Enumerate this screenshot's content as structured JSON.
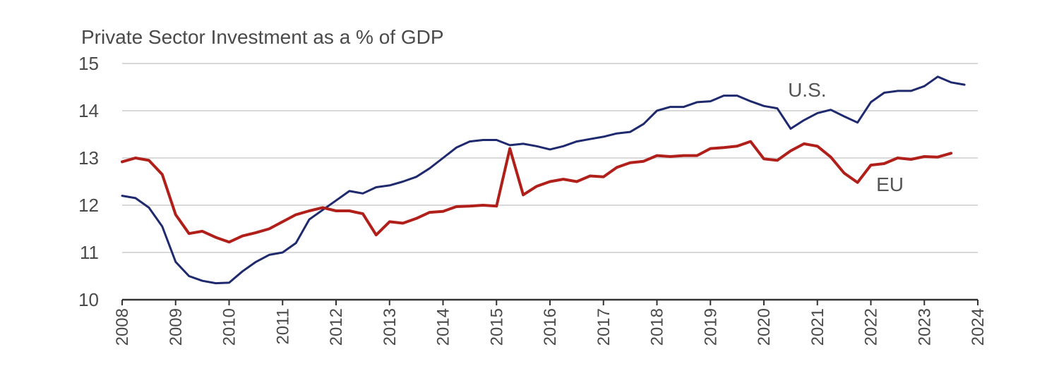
{
  "chart_data": {
    "type": "line",
    "title": "Private Sector Investment as a % of GDP",
    "xlabel": "",
    "ylabel": "",
    "xlim": [
      2008,
      2024
    ],
    "ylim": [
      10,
      15
    ],
    "yticks": [
      "10",
      "11",
      "12",
      "13",
      "14",
      "15"
    ],
    "xticks": [
      "2008",
      "2009",
      "2010",
      "2011",
      "2012",
      "2013",
      "2014",
      "2015",
      "2016",
      "2017",
      "2018",
      "2019",
      "2020",
      "2021",
      "2022",
      "2023",
      "2024"
    ],
    "grid": true,
    "series": [
      {
        "name": "U.S.",
        "color": "#1f2a6e",
        "points": [
          [
            2008.0,
            12.2
          ],
          [
            2008.25,
            12.15
          ],
          [
            2008.5,
            11.95
          ],
          [
            2008.75,
            11.55
          ],
          [
            2009.0,
            10.8
          ],
          [
            2009.25,
            10.5
          ],
          [
            2009.5,
            10.4
          ],
          [
            2009.75,
            10.35
          ],
          [
            2010.0,
            10.36
          ],
          [
            2010.25,
            10.6
          ],
          [
            2010.5,
            10.8
          ],
          [
            2010.75,
            10.95
          ],
          [
            2011.0,
            11.0
          ],
          [
            2011.25,
            11.2
          ],
          [
            2011.5,
            11.7
          ],
          [
            2011.75,
            11.9
          ],
          [
            2012.0,
            12.1
          ],
          [
            2012.25,
            12.3
          ],
          [
            2012.5,
            12.25
          ],
          [
            2012.75,
            12.38
          ],
          [
            2013.0,
            12.42
          ],
          [
            2013.25,
            12.5
          ],
          [
            2013.5,
            12.6
          ],
          [
            2013.75,
            12.78
          ],
          [
            2014.0,
            13.0
          ],
          [
            2014.25,
            13.22
          ],
          [
            2014.5,
            13.35
          ],
          [
            2014.75,
            13.38
          ],
          [
            2015.0,
            13.38
          ],
          [
            2015.25,
            13.27
          ],
          [
            2015.5,
            13.3
          ],
          [
            2015.75,
            13.25
          ],
          [
            2016.0,
            13.18
          ],
          [
            2016.25,
            13.25
          ],
          [
            2016.5,
            13.35
          ],
          [
            2016.75,
            13.4
          ],
          [
            2017.0,
            13.45
          ],
          [
            2017.25,
            13.52
          ],
          [
            2017.5,
            13.55
          ],
          [
            2017.75,
            13.72
          ],
          [
            2018.0,
            14.0
          ],
          [
            2018.25,
            14.08
          ],
          [
            2018.5,
            14.08
          ],
          [
            2018.75,
            14.18
          ],
          [
            2019.0,
            14.2
          ],
          [
            2019.25,
            14.32
          ],
          [
            2019.5,
            14.32
          ],
          [
            2019.75,
            14.2
          ],
          [
            2020.0,
            14.1
          ],
          [
            2020.25,
            14.05
          ],
          [
            2020.5,
            13.62
          ],
          [
            2020.75,
            13.8
          ],
          [
            2021.0,
            13.95
          ],
          [
            2021.25,
            14.02
          ],
          [
            2021.5,
            13.88
          ],
          [
            2021.75,
            13.75
          ],
          [
            2022.0,
            14.18
          ],
          [
            2022.25,
            14.38
          ],
          [
            2022.5,
            14.42
          ],
          [
            2022.75,
            14.42
          ],
          [
            2023.0,
            14.52
          ],
          [
            2023.25,
            14.72
          ],
          [
            2023.5,
            14.6
          ],
          [
            2023.75,
            14.55
          ]
        ]
      },
      {
        "name": "EU",
        "color": "#b01f1a",
        "points": [
          [
            2008.0,
            12.92
          ],
          [
            2008.25,
            13.0
          ],
          [
            2008.5,
            12.95
          ],
          [
            2008.75,
            12.65
          ],
          [
            2009.0,
            11.8
          ],
          [
            2009.25,
            11.4
          ],
          [
            2009.5,
            11.45
          ],
          [
            2009.75,
            11.32
          ],
          [
            2010.0,
            11.22
          ],
          [
            2010.25,
            11.35
          ],
          [
            2010.5,
            11.42
          ],
          [
            2010.75,
            11.5
          ],
          [
            2011.0,
            11.65
          ],
          [
            2011.25,
            11.8
          ],
          [
            2011.5,
            11.88
          ],
          [
            2011.75,
            11.95
          ],
          [
            2012.0,
            11.88
          ],
          [
            2012.25,
            11.88
          ],
          [
            2012.5,
            11.82
          ],
          [
            2012.75,
            11.37
          ],
          [
            2013.0,
            11.65
          ],
          [
            2013.25,
            11.62
          ],
          [
            2013.5,
            11.72
          ],
          [
            2013.75,
            11.85
          ],
          [
            2014.0,
            11.87
          ],
          [
            2014.25,
            11.97
          ],
          [
            2014.5,
            11.98
          ],
          [
            2014.75,
            12.0
          ],
          [
            2015.0,
            11.98
          ],
          [
            2015.25,
            13.2
          ],
          [
            2015.5,
            12.22
          ],
          [
            2015.75,
            12.4
          ],
          [
            2016.0,
            12.5
          ],
          [
            2016.25,
            12.55
          ],
          [
            2016.5,
            12.5
          ],
          [
            2016.75,
            12.62
          ],
          [
            2017.0,
            12.6
          ],
          [
            2017.25,
            12.8
          ],
          [
            2017.5,
            12.9
          ],
          [
            2017.75,
            12.93
          ],
          [
            2018.0,
            13.05
          ],
          [
            2018.25,
            13.03
          ],
          [
            2018.5,
            13.05
          ],
          [
            2018.75,
            13.05
          ],
          [
            2019.0,
            13.2
          ],
          [
            2019.25,
            13.22
          ],
          [
            2019.5,
            13.25
          ],
          [
            2019.75,
            13.35
          ],
          [
            2020.0,
            12.98
          ],
          [
            2020.25,
            12.95
          ],
          [
            2020.5,
            13.15
          ],
          [
            2020.75,
            13.3
          ],
          [
            2021.0,
            13.25
          ],
          [
            2021.25,
            13.02
          ],
          [
            2021.5,
            12.68
          ],
          [
            2021.75,
            12.48
          ],
          [
            2022.0,
            12.85
          ],
          [
            2022.25,
            12.88
          ],
          [
            2022.5,
            13.0
          ],
          [
            2022.75,
            12.97
          ],
          [
            2023.0,
            13.03
          ],
          [
            2023.25,
            13.02
          ],
          [
            2023.5,
            13.1
          ]
        ]
      }
    ]
  }
}
